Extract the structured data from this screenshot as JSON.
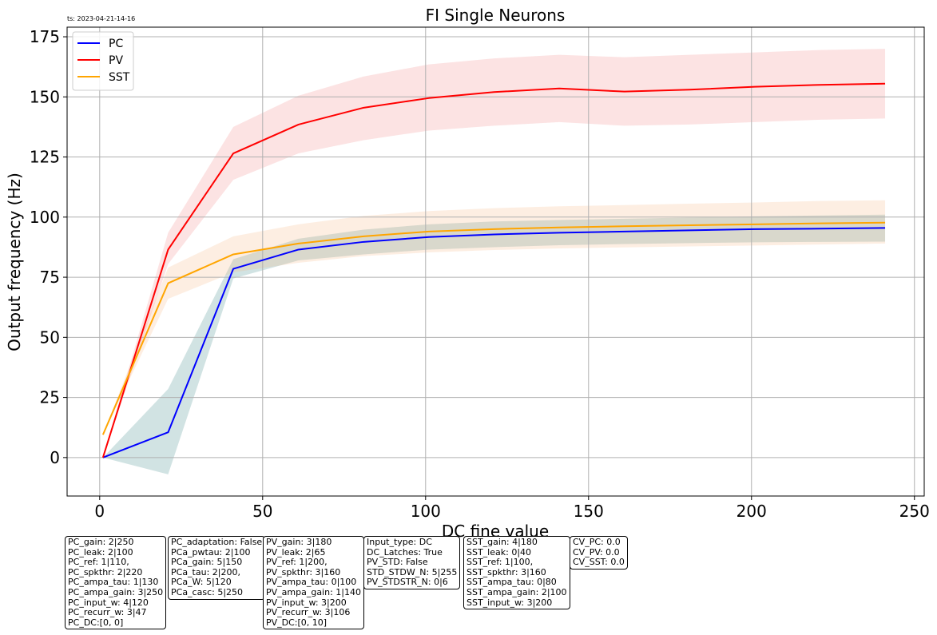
{
  "timestamp": "ts: 2023-04-21-14-16",
  "chart_data": {
    "type": "line",
    "title": "FI Single Neurons",
    "xlabel": "DC fine value",
    "ylabel": "Output frequency (Hz)",
    "xlim": [
      -10,
      253
    ],
    "ylim": [
      -16,
      179
    ],
    "xticks": [
      0,
      50,
      100,
      150,
      200,
      250
    ],
    "yticks": [
      0,
      25,
      50,
      75,
      100,
      125,
      150,
      175
    ],
    "grid": true,
    "legend_position": "top-left",
    "x": [
      1,
      21,
      41,
      61,
      81,
      101,
      121,
      141,
      161,
      181,
      201,
      221,
      241
    ],
    "series": [
      {
        "name": "PC",
        "color": "#0000ff",
        "band_color": "#2e7e7e",
        "values": [
          0,
          10.5,
          78.5,
          86.5,
          89.7,
          91.7,
          92.8,
          93.5,
          94,
          94.5,
          95,
          95.2,
          95.5
        ],
        "lower": [
          0,
          -7,
          74.5,
          82,
          84.5,
          86.5,
          87.5,
          88.3,
          88.8,
          89.2,
          89.5,
          89.7,
          89.8
        ],
        "upper": [
          0,
          28.5,
          82.5,
          91,
          94.8,
          97,
          98.2,
          98.8,
          99.3,
          99.8,
          100.3,
          100.7,
          101
        ]
      },
      {
        "name": "PV",
        "color": "#ff0000",
        "band_color": "#f08080",
        "values": [
          0,
          86.5,
          126.5,
          138.5,
          145.5,
          149.5,
          152,
          153.5,
          152.2,
          153,
          154.2,
          155,
          155.5
        ],
        "lower": [
          0,
          80.5,
          115.5,
          126.5,
          132,
          136,
          138,
          139.5,
          138,
          138.5,
          139.5,
          140.5,
          141
        ],
        "upper": [
          0,
          93.5,
          137.5,
          150.5,
          158.5,
          163.5,
          166,
          167.5,
          166.5,
          167.5,
          168.5,
          169.5,
          170
        ]
      },
      {
        "name": "SST",
        "color": "#ffa500",
        "band_color": "#f5b27a",
        "values": [
          9.5,
          72.5,
          84.5,
          89,
          92,
          94,
          95,
          95.7,
          96.2,
          96.6,
          97,
          97.4,
          97.7
        ],
        "lower": [
          9.5,
          66,
          77,
          81,
          83.8,
          85.3,
          86.3,
          87,
          87.4,
          87.8,
          88.2,
          88.6,
          89
        ],
        "upper": [
          9.5,
          79,
          92,
          97,
          100.5,
          102.5,
          103.7,
          104.5,
          105,
          105.6,
          106.1,
          106.7,
          107
        ]
      }
    ]
  },
  "param_boxes": [
    {
      "lines": [
        "PC_gain: 2|250",
        "PC_leak: 2|100",
        "PC_ref: 1|110,",
        "PC_spkthr: 2|220",
        "PC_ampa_tau: 1|130",
        "PC_ampa_gain: 3|250",
        "PC_input_w: 4|120",
        "PC_recurr_w: 3|47",
        "PC_DC:[0, 0]"
      ]
    },
    {
      "lines": [
        "PC_adaptation: False",
        "PCa_pwtau: 2|100",
        "PCa_gain: 5|150",
        "PCa_tau: 2|200,",
        "PCa_W: 5|120",
        "PCa_casc: 5|250"
      ]
    },
    {
      "lines": [
        "PV_gain: 3|180",
        "PV_leak: 2|65",
        "PV_ref: 1|200,",
        "PV_spkthr: 3|160",
        "PV_ampa_tau: 0|100",
        "PV_ampa_gain: 1|140",
        "PV_input_w: 3|200",
        "PV_recurr_w: 3|106",
        "PV_DC:[0, 10]"
      ]
    },
    {
      "lines": [
        "Input_type: DC",
        "DC_Latches: True",
        "PV_STD: False",
        "STD_STDW_N: 5|255",
        "PV_STDSTR_N: 0|6"
      ]
    },
    {
      "lines": [
        "SST_gain: 4|180",
        "SST_leak: 0|40",
        "SST_ref: 1|100,",
        "SST_spkthr: 3|160",
        "SST_ampa_tau: 0|80",
        "SST_ampa_gain: 2|100",
        "SST_input_w: 3|200"
      ]
    },
    {
      "lines": [
        "CV_PC: 0.0",
        "CV_PV: 0.0",
        "CV_SST: 0.0"
      ]
    }
  ]
}
